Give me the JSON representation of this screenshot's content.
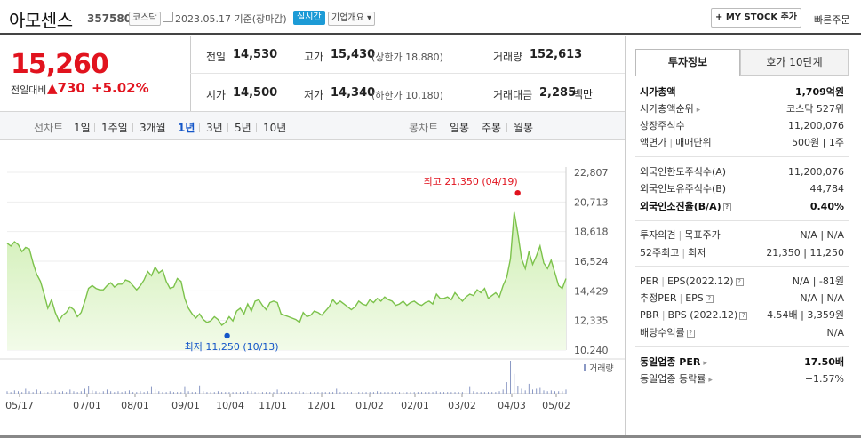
{
  "header": {
    "name": "아모센스",
    "code": "357580",
    "market": "코스닥",
    "date": "2023.05.17  기준(장마감)",
    "realtime": "실시간",
    "overview": "기업개요 ▾",
    "mystock": "+ MY STOCK 추가",
    "quick": "빠른주문"
  },
  "price": {
    "current": "15,260",
    "change_label": "전일대비",
    "change": "▲730",
    "change_pct": "+5.02%"
  },
  "quote": {
    "prev_label": "전일",
    "prev": "14,530",
    "high_label": "고가",
    "high": "15,430",
    "upper_limit": "(상한가 18,880)",
    "volume_label": "거래량",
    "volume": "152,613",
    "open_label": "시가",
    "open": "14,500",
    "low_label": "저가",
    "low": "14,340",
    "lower_limit": "(하한가 10,180)",
    "amount_label": "거래대금",
    "amount": "2,285",
    "amount_unit": "백만"
  },
  "period": {
    "line_label": "선차트",
    "line_options": [
      "1일",
      "1주일",
      "3개월",
      "1년",
      "3년",
      "5년",
      "10년"
    ],
    "active": "1년",
    "candle_label": "봉차트",
    "candle_options": [
      "일봉",
      "주봉",
      "월봉"
    ]
  },
  "side": {
    "tab_invest": "투자정보",
    "tab_hoga": "호가 10단계",
    "market_cap_label": "시가총액",
    "market_cap": "1,709억원",
    "cap_rank_label": "시가총액순위",
    "cap_rank": "코스닥 527위",
    "shares_label": "상장주식수",
    "shares": "11,200,076",
    "par_label": "액면가",
    "unit_label": "매매단위",
    "par_unit": "500원 | 1주",
    "foreign_limit_label": "외국인한도주식수(A)",
    "foreign_limit": "11,200,076",
    "foreign_hold_label": "외국인보유주식수(B)",
    "foreign_hold": "44,784",
    "foreign_rate_label": "외국인소진율(B/A)",
    "foreign_rate": "0.40%",
    "opinion_label": "투자의견",
    "target_label": "목표주가",
    "opinion_target": "N/A | N/A",
    "w52_label": "52주최고",
    "w52_low_label": "최저",
    "w52": "21,350 | 11,250",
    "per_label": "PER",
    "eps_label": "EPS(2022.12)",
    "per_eps": "N/A | -81원",
    "eper_label": "추정PER",
    "eeps_label": "EPS",
    "eper_eeps": "N/A | N/A",
    "pbr_label": "PBR",
    "bps_label": "BPS (2022.12)",
    "pbr_bps": "4.54배 | 3,359원",
    "div_label": "배당수익률",
    "div": "N/A",
    "sector_per_label": "동일업종 PER",
    "sector_per": "17.50배",
    "sector_chg_label": "동일업종 등락률",
    "sector_chg": "+1.57%"
  },
  "chart_data": {
    "type": "area",
    "y_ticks": [
      "22,807",
      "20,713",
      "18,618",
      "16,524",
      "14,429",
      "12,335",
      "10,240"
    ],
    "ylim": [
      10240,
      22807
    ],
    "x_ticks": [
      "05/17",
      "07/01",
      "08/01",
      "09/01",
      "10/04",
      "11/01",
      "12/01",
      "01/02",
      "02/01",
      "03/02",
      "04/03",
      "05/02"
    ],
    "high_annotation": "최고 21,350 (04/19)",
    "low_annotation": "최저 11,250 (10/13)",
    "volume_label": "거래량",
    "colors": {
      "line": "#7cc24b",
      "fill_top": "#cfeeb3",
      "fill_bottom": "#f2fbe9",
      "high": "#e1131e",
      "low": "#1456c8"
    },
    "series": [
      {
        "values": [
          17800,
          17600,
          17900,
          17700,
          17200,
          17500,
          17400,
          16400,
          15600,
          15100,
          14200,
          13200,
          13800,
          12900,
          12300,
          12700,
          12900,
          13300,
          13100,
          12600,
          12900,
          13700,
          14600,
          14800,
          14600,
          14500,
          14500,
          14800,
          15000,
          14700,
          14900,
          14900,
          15200,
          15100,
          14800,
          14500,
          14800,
          15200,
          15800,
          15500,
          16100,
          15700,
          15900,
          15100,
          14600,
          14700,
          15300,
          15100,
          13900,
          13200,
          12800,
          12500,
          12800,
          12400,
          12200,
          12300,
          12600,
          12400,
          12000,
          12200,
          12600,
          12300,
          13000,
          13200,
          12800,
          13500,
          13000,
          13700,
          13800,
          13400,
          13100,
          13600,
          13700,
          13600,
          12800,
          12700,
          12600,
          12500,
          12400,
          12200,
          12900,
          12600,
          12700,
          13000,
          12900,
          12700,
          13000,
          13300,
          13800,
          13500,
          13700,
          13500,
          13300,
          13100,
          13300,
          13700,
          13500,
          13400,
          13800,
          13600,
          13900,
          13700,
          14000,
          13800,
          13700,
          13400,
          13500,
          13700,
          13400,
          13600,
          13700,
          13500,
          13400,
          13600,
          13700,
          13500,
          14200,
          13900,
          13900,
          14000,
          13800,
          14300,
          14000,
          13700,
          14000,
          14200,
          14100,
          14500,
          14300,
          14600,
          13900,
          14100,
          14300,
          14000,
          14800,
          15400,
          16700,
          20000,
          18500,
          16700,
          16000,
          17200,
          16300,
          16900,
          17600,
          16400,
          16000,
          16600,
          15700,
          14800,
          14600,
          15300
        ]
      }
    ],
    "volume": [
      3,
      2,
      4,
      3,
      2,
      6,
      3,
      2,
      5,
      3,
      2,
      2,
      3,
      4,
      2,
      3,
      2,
      5,
      3,
      2,
      3,
      6,
      9,
      4,
      3,
      2,
      3,
      5,
      3,
      2,
      3,
      2,
      3,
      4,
      2,
      2,
      3,
      2,
      3,
      8,
      5,
      3,
      2,
      2,
      3,
      2,
      2,
      2,
      8,
      3,
      2,
      2,
      10,
      3,
      2,
      2,
      2,
      3,
      2,
      2,
      2,
      2,
      2,
      2,
      2,
      3,
      3,
      2,
      2,
      2,
      2,
      2,
      2,
      5,
      2,
      2,
      2,
      2,
      2,
      3,
      2,
      2,
      2,
      2,
      2,
      2,
      2,
      2,
      2,
      6,
      2,
      2,
      2,
      2,
      2,
      2,
      2,
      2,
      2,
      2,
      3,
      2,
      2,
      2,
      2,
      2,
      2,
      2,
      2,
      2,
      2,
      2,
      2,
      2,
      2,
      2,
      3,
      2,
      2,
      2,
      2,
      2,
      2,
      2,
      6,
      8,
      3,
      2,
      2,
      2,
      2,
      2,
      2,
      3,
      5,
      14,
      40,
      24,
      9,
      6,
      4,
      12,
      5,
      6,
      7,
      4,
      3,
      4,
      3,
      3,
      3,
      5
    ]
  }
}
